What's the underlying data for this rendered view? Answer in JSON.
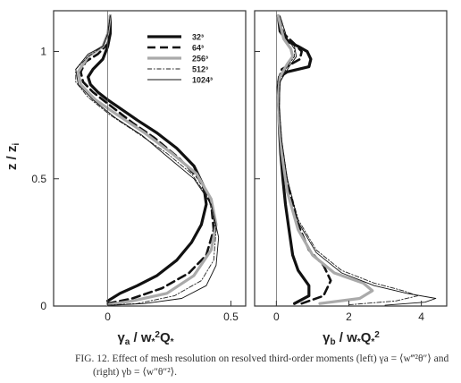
{
  "chart_data": [
    {
      "type": "line",
      "panel": "left",
      "xlabel": "γ_a / w*²Q*",
      "ylabel": "z / z_i",
      "xlim": [
        -0.22,
        0.56
      ],
      "ylim": [
        0,
        1.16
      ],
      "xticks": [
        {
          "value": 0,
          "label": "0"
        },
        {
          "value": 0.5,
          "label": "0.5"
        }
      ],
      "yticks": [
        {
          "value": 0,
          "label": "0"
        },
        {
          "value": 0.5,
          "label": "0.5"
        },
        {
          "value": 1,
          "label": "1"
        }
      ],
      "legend": {
        "placement": "top-right",
        "entries": [
          "32³",
          "64³",
          "256³",
          "512³",
          "1024³"
        ]
      },
      "series": [
        {
          "name": "32³",
          "color": "#111111",
          "style": "solid-thick",
          "x": [
            0.0,
            0.05,
            0.12,
            0.2,
            0.28,
            0.34,
            0.38,
            0.4,
            0.39,
            0.35,
            0.28,
            0.2,
            0.12,
            0.06,
            0.0,
            -0.04,
            -0.07,
            -0.08,
            -0.06,
            -0.02,
            0.0,
            0.01,
            0.01
          ],
          "y": [
            0.02,
            0.05,
            0.08,
            0.12,
            0.18,
            0.25,
            0.32,
            0.4,
            0.47,
            0.55,
            0.62,
            0.68,
            0.73,
            0.77,
            0.81,
            0.84,
            0.87,
            0.9,
            0.93,
            0.97,
            1.02,
            1.07,
            1.14
          ]
        },
        {
          "name": "64³",
          "color": "#111111",
          "style": "dashed-thick",
          "x": [
            0.0,
            0.1,
            0.22,
            0.33,
            0.4,
            0.43,
            0.42,
            0.37,
            0.29,
            0.19,
            0.1,
            0.02,
            -0.06,
            -0.1,
            -0.11,
            -0.09,
            -0.04,
            0.0,
            0.01,
            0.01
          ],
          "y": [
            0.01,
            0.03,
            0.07,
            0.13,
            0.2,
            0.3,
            0.4,
            0.5,
            0.58,
            0.66,
            0.72,
            0.78,
            0.84,
            0.88,
            0.92,
            0.96,
            0.99,
            1.03,
            1.08,
            1.14
          ]
        },
        {
          "name": "256³",
          "color": "#aaaaaa",
          "style": "solid-thick",
          "x": [
            0.0,
            0.1,
            0.24,
            0.35,
            0.42,
            0.44,
            0.42,
            0.36,
            0.26,
            0.15,
            0.04,
            -0.05,
            -0.11,
            -0.12,
            -0.08,
            -0.02,
            0.0,
            0.01
          ],
          "y": [
            0.005,
            0.02,
            0.05,
            0.12,
            0.22,
            0.32,
            0.42,
            0.52,
            0.6,
            0.68,
            0.75,
            0.81,
            0.87,
            0.92,
            0.98,
            1.02,
            1.07,
            1.14
          ]
        },
        {
          "name": "512³",
          "color": "#222222",
          "style": "dashdot-thin",
          "x": [
            0.0,
            0.12,
            0.27,
            0.38,
            0.43,
            0.44,
            0.41,
            0.34,
            0.24,
            0.12,
            0.01,
            -0.08,
            -0.13,
            -0.13,
            -0.08,
            -0.02,
            0.0,
            0.01
          ],
          "y": [
            0.003,
            0.01,
            0.04,
            0.1,
            0.18,
            0.3,
            0.42,
            0.52,
            0.6,
            0.68,
            0.75,
            0.82,
            0.88,
            0.93,
            0.98,
            1.02,
            1.07,
            1.14
          ]
        },
        {
          "name": "1024³",
          "color": "#111111",
          "style": "solid-thin",
          "x": [
            0.0,
            0.15,
            0.3,
            0.4,
            0.44,
            0.45,
            0.42,
            0.35,
            0.25,
            0.14,
            0.03,
            -0.06,
            -0.12,
            -0.13,
            -0.08,
            -0.02,
            0.0,
            0.01
          ],
          "y": [
            0.002,
            0.01,
            0.03,
            0.08,
            0.16,
            0.27,
            0.4,
            0.5,
            0.58,
            0.67,
            0.74,
            0.81,
            0.87,
            0.93,
            0.99,
            1.02,
            1.07,
            1.14
          ]
        }
      ]
    },
    {
      "type": "line",
      "panel": "right",
      "xlabel": "γ_b / w*Q*²",
      "xlim": [
        -0.6,
        4.7
      ],
      "ylim": [
        0,
        1.16
      ],
      "xticks": [
        {
          "value": 0,
          "label": "0"
        },
        {
          "value": 2,
          "label": "2"
        },
        {
          "value": 4,
          "label": "4"
        }
      ],
      "series": [
        {
          "name": "32³",
          "color": "#111111",
          "style": "solid-thick",
          "x": [
            0.5,
            0.9,
            0.9,
            0.6,
            0.45,
            0.35,
            0.25,
            0.18,
            0.12,
            0.08,
            0.06,
            0.05,
            0.08,
            0.3,
            0.6,
            0.9,
            0.95,
            0.85,
            0.6,
            0.3,
            0.1,
            0.05
          ],
          "y": [
            0.01,
            0.04,
            0.08,
            0.14,
            0.2,
            0.3,
            0.4,
            0.5,
            0.6,
            0.7,
            0.8,
            0.86,
            0.9,
            0.92,
            0.93,
            0.94,
            0.97,
            1.0,
            1.02,
            1.04,
            1.08,
            1.14
          ]
        },
        {
          "name": "64³",
          "color": "#111111",
          "style": "dashed-thick",
          "x": [
            0.7,
            1.3,
            1.5,
            1.3,
            0.9,
            0.6,
            0.35,
            0.18,
            0.09,
            0.05,
            0.05,
            0.15,
            0.4,
            0.65,
            0.7,
            0.5,
            0.2,
            0.05
          ],
          "y": [
            0.01,
            0.04,
            0.1,
            0.16,
            0.22,
            0.32,
            0.45,
            0.58,
            0.7,
            0.8,
            0.88,
            0.93,
            0.95,
            0.97,
            1.0,
            1.03,
            1.07,
            1.14
          ]
        },
        {
          "name": "256³",
          "color": "#aaaaaa",
          "style": "solid-thick",
          "x": [
            1.2,
            2.3,
            2.65,
            2.4,
            1.6,
            1.0,
            0.6,
            0.3,
            0.15,
            0.08,
            0.05,
            0.1,
            0.3,
            0.45,
            0.4,
            0.2,
            0.05
          ],
          "y": [
            0.01,
            0.03,
            0.06,
            0.09,
            0.13,
            0.2,
            0.3,
            0.45,
            0.6,
            0.72,
            0.82,
            0.9,
            0.95,
            0.98,
            1.01,
            1.05,
            1.14
          ]
        },
        {
          "name": "512³",
          "color": "#222222",
          "style": "dashdot-thin",
          "x": [
            2.0,
            3.3,
            3.9,
            3.5,
            2.7,
            1.8,
            1.1,
            0.6,
            0.3,
            0.15,
            0.08,
            0.1,
            0.3,
            0.5,
            0.5,
            0.3,
            0.1
          ],
          "y": [
            0.005,
            0.02,
            0.04,
            0.06,
            0.09,
            0.14,
            0.22,
            0.34,
            0.5,
            0.65,
            0.78,
            0.88,
            0.94,
            0.98,
            1.01,
            1.05,
            1.14
          ]
        },
        {
          "name": "1024³",
          "color": "#111111",
          "style": "solid-thin",
          "x": [
            3.0,
            4.1,
            4.4,
            3.6,
            2.7,
            1.8,
            1.1,
            0.6,
            0.3,
            0.15,
            0.08,
            0.1,
            0.35,
            0.55,
            0.5,
            0.3,
            0.1
          ],
          "y": [
            0.003,
            0.015,
            0.03,
            0.05,
            0.08,
            0.13,
            0.21,
            0.33,
            0.5,
            0.65,
            0.78,
            0.88,
            0.94,
            0.98,
            1.02,
            1.05,
            1.14
          ]
        }
      ]
    }
  ],
  "caption": {
    "line1": "FIG. 12. Effect of mesh resolution on resolved third-order moments (left) γa = ⟨w‴²θ″⟩ and",
    "line2": "(right) γb = ⟨w″θ″²⟩."
  }
}
